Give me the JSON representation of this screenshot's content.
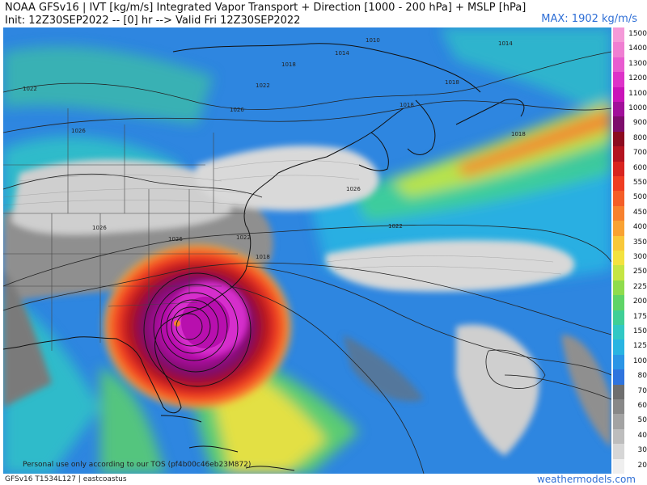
{
  "header": {
    "title_line1": "NOAA GFSv16 | IVT [kg/m/s] Integrated Vapor Transport + Direction [1000 - 200 hPa] + MSLP [hPa]",
    "title_line2": "Init: 12Z30SEP2022 -- [0] hr --> Valid Fri 12Z30SEP2022",
    "max_label": "MAX: 1902 kg/m/s"
  },
  "footer": {
    "tos_text": "Personal use only according to our TOS (pf4b00c46eb23M872)",
    "model_text": "GFSv16 T1534L127 | eastcoastus",
    "site_text": "weathermodels.com"
  },
  "legend": [
    {
      "label": "1500",
      "color": "#f49ad8"
    },
    {
      "label": "1400",
      "color": "#ef7fd2"
    },
    {
      "label": "1300",
      "color": "#e85cd0"
    },
    {
      "label": "1200",
      "color": "#dd33c8"
    },
    {
      "label": "1100",
      "color": "#c914b8"
    },
    {
      "label": "1000",
      "color": "#a1109a"
    },
    {
      "label": "900",
      "color": "#7d0d6b"
    },
    {
      "label": "800",
      "color": "#8c0b1f"
    },
    {
      "label": "700",
      "color": "#b3131f"
    },
    {
      "label": "600",
      "color": "#d8241f"
    },
    {
      "label": "550",
      "color": "#ef3d22"
    },
    {
      "label": "500",
      "color": "#f45e28"
    },
    {
      "label": "450",
      "color": "#f7812e"
    },
    {
      "label": "400",
      "color": "#f9a232"
    },
    {
      "label": "350",
      "color": "#f8c83a"
    },
    {
      "label": "300",
      "color": "#f3e23f"
    },
    {
      "label": "250",
      "color": "#c5e543"
    },
    {
      "label": "225",
      "color": "#8fdc4d"
    },
    {
      "label": "200",
      "color": "#5fd467"
    },
    {
      "label": "175",
      "color": "#3fcf96"
    },
    {
      "label": "150",
      "color": "#31c8c4"
    },
    {
      "label": "125",
      "color": "#29b4e2"
    },
    {
      "label": "100",
      "color": "#2b95e6"
    },
    {
      "label": "80",
      "color": "#2f74de"
    },
    {
      "label": "70",
      "color": "#6e6e6e"
    },
    {
      "label": "60",
      "color": "#888888"
    },
    {
      "label": "50",
      "color": "#a3a3a3"
    },
    {
      "label": "40",
      "color": "#bdbdbd"
    },
    {
      "label": "30",
      "color": "#d6d6d6"
    },
    {
      "label": "20",
      "color": "#efefef"
    }
  ],
  "isobar_labels": [
    "1010",
    "1014",
    "1014",
    "1018",
    "1018",
    "1022",
    "1026",
    "1026",
    "1026",
    "1026",
    "1022",
    "1018",
    "1022",
    "1018",
    "1018",
    "1022",
    "1026"
  ]
}
